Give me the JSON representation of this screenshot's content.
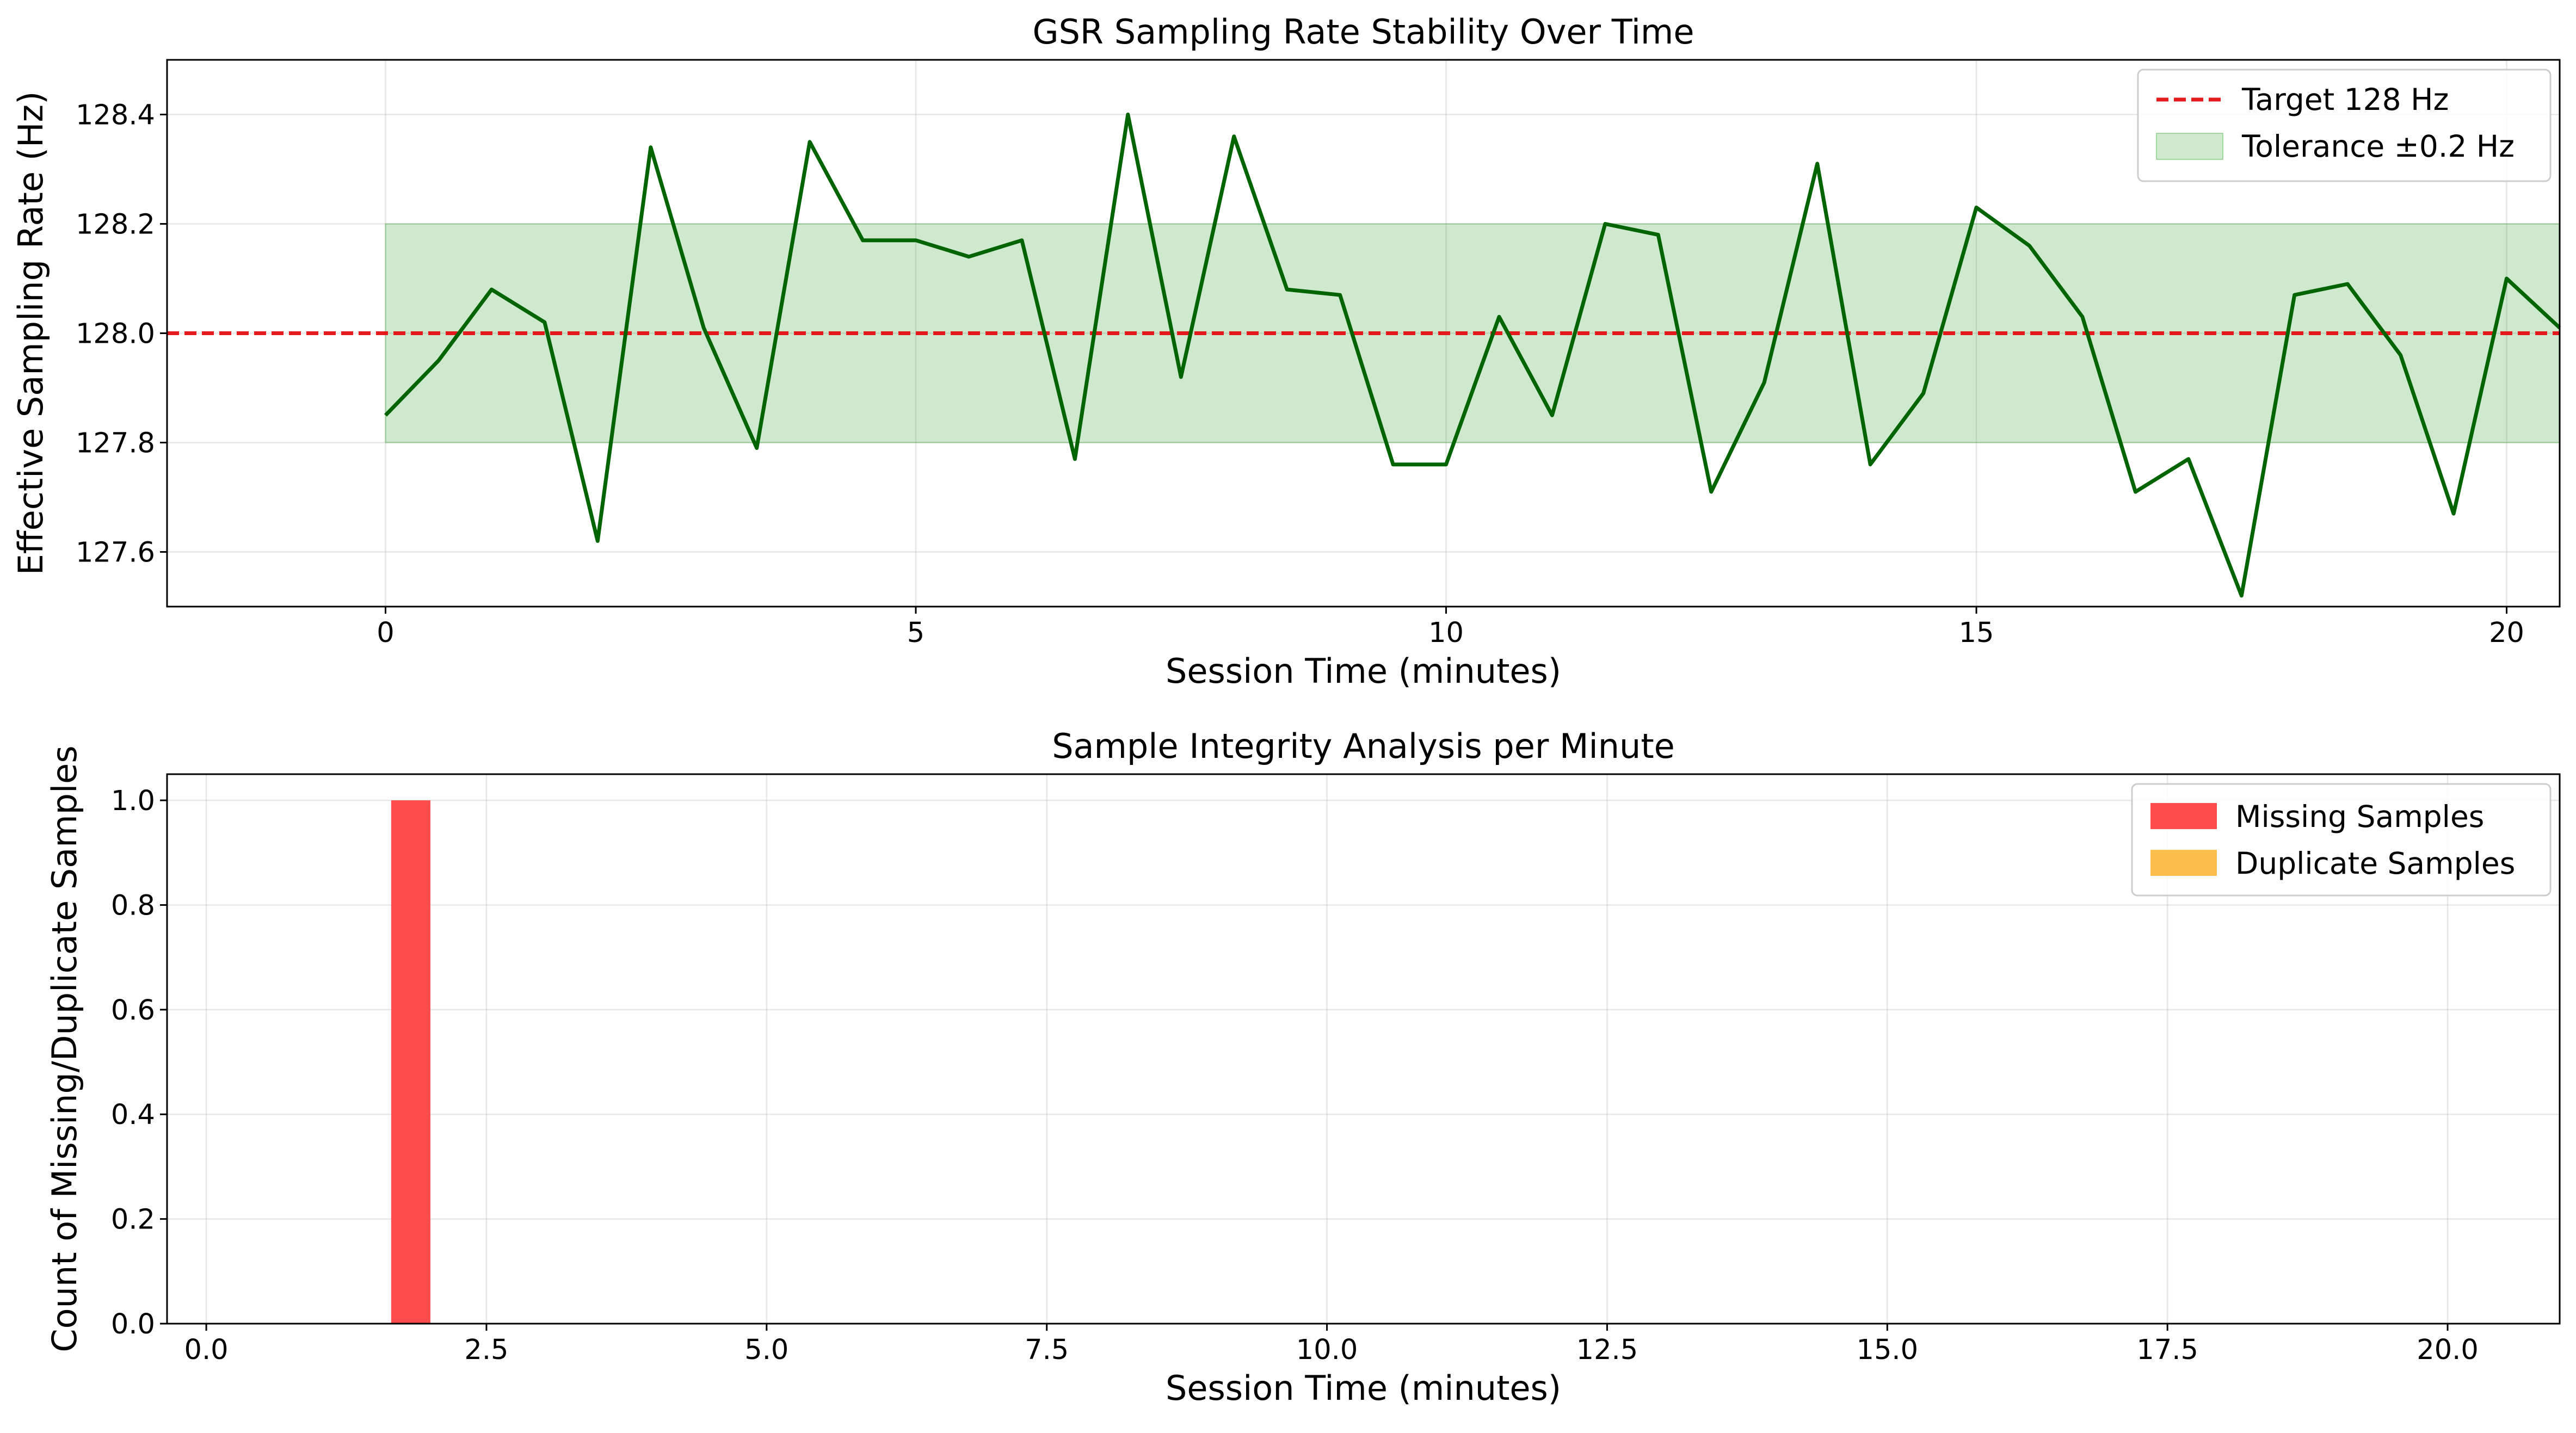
{
  "chart_data": [
    {
      "type": "line",
      "title": "GSR Sampling Rate Stability Over Time",
      "xlabel": "Session Time (minutes)",
      "ylabel": "Effective Sampling Rate (Hz)",
      "xlim": [
        -2.06,
        20.5
      ],
      "ylim": [
        127.5,
        128.5
      ],
      "xticks": [
        0,
        5,
        10,
        15,
        20
      ],
      "xtick_labels": [
        "0",
        "5",
        "10",
        "15",
        "20"
      ],
      "yticks": [
        127.6,
        127.8,
        128.0,
        128.2,
        128.4
      ],
      "ytick_labels": [
        "127.6",
        "127.8",
        "128.0",
        "128.2",
        "128.4"
      ],
      "grid": true,
      "legend_position": "top-right",
      "series": [
        {
          "kind": "line",
          "color": "#006400",
          "x": [
            0,
            0.5,
            1,
            1.5,
            2,
            2.5,
            3,
            3.5,
            4,
            4.5,
            5,
            5.5,
            6,
            6.5,
            7,
            7.5,
            8,
            8.5,
            9,
            9.5,
            10,
            10.5,
            11,
            11.5,
            12,
            12.5,
            13,
            13.5,
            14,
            14.5,
            15,
            15.5,
            16,
            16.5,
            17,
            17.5,
            18,
            18.5,
            19,
            19.5,
            20,
            20.5
          ],
          "y": [
            127.85,
            127.95,
            128.08,
            128.02,
            127.62,
            128.34,
            128.01,
            127.79,
            128.35,
            128.17,
            128.17,
            128.14,
            128.17,
            127.77,
            128.4,
            127.92,
            128.36,
            128.08,
            128.07,
            127.76,
            127.76,
            128.03,
            127.85,
            128.2,
            128.18,
            127.71,
            127.91,
            128.31,
            127.76,
            127.89,
            128.23,
            128.16,
            128.03,
            127.71,
            127.77,
            127.52,
            128.07,
            128.09,
            127.96,
            127.67,
            128.1,
            128.01
          ]
        },
        {
          "kind": "hline",
          "name": "Target 128 Hz",
          "y": 128.0,
          "color": "#e41a1c"
        },
        {
          "kind": "band",
          "name": "Tolerance ±0.2 Hz",
          "x_range": [
            0,
            20.5
          ],
          "y_range": [
            127.8,
            128.2
          ],
          "color": "#2ca02c",
          "opacity": 0.23
        }
      ]
    },
    {
      "type": "bar",
      "title": "Sample Integrity Analysis per Minute",
      "xlabel": "Session Time (minutes)",
      "ylabel": "Count of Missing/Duplicate Samples",
      "xlim": [
        -0.35,
        21.0
      ],
      "ylim": [
        0,
        1.05
      ],
      "xticks": [
        0,
        2.5,
        5,
        7.5,
        10,
        12.5,
        15,
        17.5,
        20
      ],
      "xtick_labels": [
        "0.0",
        "2.5",
        "5.0",
        "7.5",
        "10.0",
        "12.5",
        "15.0",
        "17.5",
        "20.0"
      ],
      "yticks": [
        0,
        0.2,
        0.4,
        0.6,
        0.8,
        1.0
      ],
      "ytick_labels": [
        "0.0",
        "0.2",
        "0.4",
        "0.6",
        "0.8",
        "1.0"
      ],
      "grid": true,
      "legend_position": "top-right",
      "bar_width": 0.35,
      "series": [
        {
          "name": "Missing Samples",
          "color": "#ff4c4c",
          "x": [
            1.65
          ],
          "values": [
            1
          ]
        },
        {
          "name": "Duplicate Samples",
          "color": "#ffbf4c",
          "x": [],
          "values": []
        }
      ]
    }
  ]
}
